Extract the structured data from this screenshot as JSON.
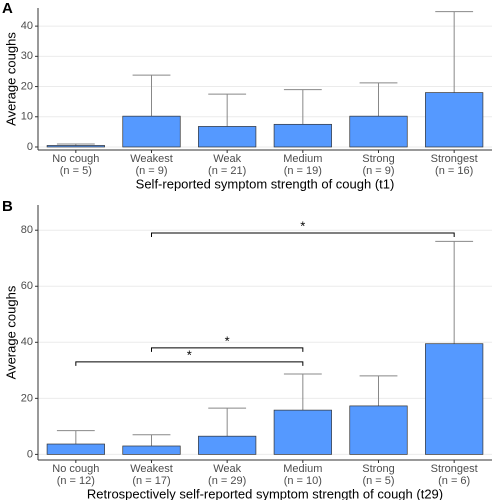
{
  "chart_data": [
    {
      "type": "bar",
      "panel": "A",
      "ylabel": "Average coughs",
      "xlabel": "Self-reported symptom strength of cough (t1)",
      "categories": [
        "No cough",
        "Weakest",
        "Weak",
        "Medium",
        "Strong",
        "Strongest"
      ],
      "n_labels": [
        "(n = 5)",
        "(n = 9)",
        "(n = 21)",
        "(n = 19)",
        "(n = 9)",
        "(n = 16)"
      ],
      "values": [
        0.5,
        10.2,
        6.8,
        7.5,
        10.2,
        18
      ],
      "errors": [
        0.5,
        13.6,
        10.7,
        11.5,
        11,
        26.8
      ],
      "color": "#5599ff",
      "ylim": [
        -1,
        46
      ],
      "yticks": [
        0,
        10,
        20,
        30,
        40
      ],
      "grid": true,
      "annotations": []
    },
    {
      "type": "bar",
      "panel": "B",
      "ylabel": "Average coughs",
      "xlabel": "Retrospectively self-reported symptom strength of cough (t29)",
      "categories": [
        "No cough",
        "Weakest",
        "Weak",
        "Medium",
        "Strong",
        "Strongest"
      ],
      "n_labels": [
        "(n = 12)",
        "(n = 17)",
        "(n = 29)",
        "(n = 10)",
        "(n = 5)",
        "(n = 6)"
      ],
      "values": [
        3.7,
        3,
        6.5,
        15.8,
        17.3,
        39.5
      ],
      "errors": [
        4.8,
        4,
        10,
        12.9,
        10.7,
        36.5
      ],
      "color": "#5599ff",
      "ylim": [
        -2,
        89
      ],
      "yticks": [
        0,
        20,
        40,
        60,
        80
      ],
      "grid": true,
      "annotations": [
        {
          "from": "Weakest",
          "to": "Strongest",
          "y": 79,
          "label": "*"
        },
        {
          "from": "Weakest",
          "to": "Medium",
          "y": 38,
          "label": "*"
        },
        {
          "from": "No cough",
          "to": "Medium",
          "y": 33,
          "label": "*"
        }
      ]
    }
  ]
}
